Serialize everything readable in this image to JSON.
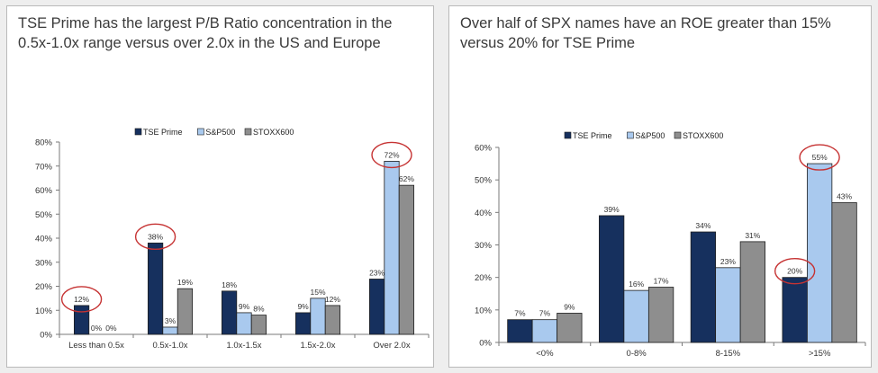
{
  "panels": [
    {
      "title": "TSE Prime has the largest P/B Ratio concentration in the 0.5x-1.0x range versus over 2.0x in the US and Europe"
    },
    {
      "title": "Over half of SPX names have an ROE greater than 15% versus 20% for TSE Prime"
    }
  ],
  "colors": {
    "TSE Prime": "#16305e",
    "S&P500": "#a9c9ee",
    "STOXX600": "#8e8e8e",
    "highlight": "#c63333"
  },
  "chart_data": [
    {
      "type": "bar",
      "title": "",
      "xlabel": "",
      "ylabel": "",
      "ylim": [
        0,
        80
      ],
      "yticks": [
        "0%",
        "10%",
        "20%",
        "30%",
        "40%",
        "50%",
        "60%",
        "70%",
        "80%"
      ],
      "legend_position": "top-center",
      "categories": [
        "Less than 0.5x",
        "0.5x-1.0x",
        "1.0x-1.5x",
        "1.5x-2.0x",
        "Over 2.0x"
      ],
      "series": [
        {
          "name": "TSE Prime",
          "values": [
            12,
            38,
            18,
            9,
            23
          ],
          "labels": [
            "12%",
            "38%",
            "18%",
            "9%",
            "23%"
          ]
        },
        {
          "name": "S&P500",
          "values": [
            0,
            3,
            9,
            15,
            72
          ],
          "labels": [
            "0%",
            "3%",
            "9%",
            "15%",
            "72%"
          ]
        },
        {
          "name": "STOXX600",
          "values": [
            0,
            19,
            8,
            12,
            62
          ],
          "labels": [
            "0%",
            "19%",
            "8%",
            "12%",
            "62%"
          ]
        }
      ],
      "highlights": [
        [
          0,
          0
        ],
        [
          0,
          1
        ],
        [
          1,
          4
        ]
      ]
    },
    {
      "type": "bar",
      "title": "",
      "xlabel": "",
      "ylabel": "",
      "ylim": [
        0,
        60
      ],
      "yticks": [
        "0%",
        "10%",
        "20%",
        "30%",
        "40%",
        "50%",
        "60%"
      ],
      "legend_position": "top-center",
      "categories": [
        "<0%",
        "0-8%",
        "8-15%",
        ">15%"
      ],
      "series": [
        {
          "name": "TSE Prime",
          "values": [
            7,
            39,
            34,
            20
          ],
          "labels": [
            "7%",
            "39%",
            "34%",
            "20%"
          ]
        },
        {
          "name": "S&P500",
          "values": [
            7,
            16,
            23,
            55
          ],
          "labels": [
            "7%",
            "16%",
            "23%",
            "55%"
          ]
        },
        {
          "name": "STOXX600",
          "values": [
            9,
            17,
            31,
            43
          ],
          "labels": [
            "9%",
            "17%",
            "31%",
            "43%"
          ]
        }
      ],
      "highlights": [
        [
          0,
          3
        ],
        [
          1,
          3
        ]
      ]
    }
  ]
}
